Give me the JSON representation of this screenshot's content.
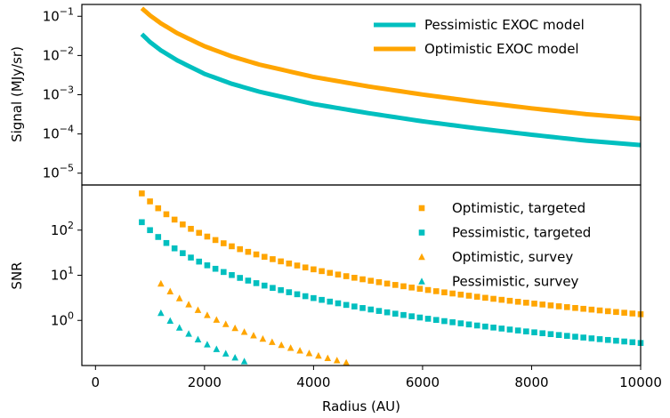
{
  "chart_data": [
    {
      "type": "line",
      "panel": "top",
      "ylabel": "Signal (MJy/sr)",
      "yscale": "log",
      "ylim": [
        5e-06,
        0.2
      ],
      "y_ticks": [
        {
          "value": 0.1,
          "base": "10",
          "exp": "−1"
        },
        {
          "value": 0.01,
          "base": "10",
          "exp": "−2"
        },
        {
          "value": 0.001,
          "base": "10",
          "exp": "−3"
        },
        {
          "value": 0.0001,
          "base": "10",
          "exp": "−4"
        },
        {
          "value": 1e-05,
          "base": "10",
          "exp": "−5"
        }
      ],
      "xlim": [
        -250,
        10000
      ],
      "legend_position": "upper-right",
      "series": [
        {
          "name": "Pessimistic EXOC model",
          "color": "#00bfbf",
          "x": [
            850,
            1000,
            1200,
            1500,
            2000,
            2500,
            3000,
            4000,
            5000,
            6000,
            7000,
            8000,
            9000,
            10000
          ],
          "y": [
            0.035,
            0.022,
            0.0135,
            0.0075,
            0.0034,
            0.0019,
            0.0012,
            0.00058,
            0.00034,
            0.00021,
            0.000139,
            9.55e-05,
            6.75e-05,
            5.2e-05
          ]
        },
        {
          "name": "Optimistic EXOC model",
          "color": "#ffa500",
          "x": [
            850,
            1000,
            1200,
            1500,
            2000,
            2500,
            3000,
            4000,
            5000,
            6000,
            7000,
            8000,
            9000,
            10000
          ],
          "y": [
            0.16,
            0.105,
            0.066,
            0.037,
            0.0172,
            0.0095,
            0.0059,
            0.00284,
            0.00163,
            0.00101,
            0.00066,
            0.00045,
            0.00032,
            0.000245
          ]
        }
      ]
    },
    {
      "type": "scatter",
      "panel": "bottom",
      "ylabel": "SNR",
      "xlabel": "Radius (AU)",
      "yscale": "log",
      "ylim": [
        0.1,
        1000
      ],
      "y_ticks": [
        {
          "value": 100,
          "base": "10",
          "exp": "2"
        },
        {
          "value": 10,
          "base": "10",
          "exp": "1"
        },
        {
          "value": 1,
          "base": "10",
          "exp": "0"
        }
      ],
      "xlim": [
        -250,
        10000
      ],
      "x_ticks": [
        "0",
        "2000",
        "4000",
        "6000",
        "8000",
        "10000"
      ],
      "legend_position": "upper-right",
      "series": [
        {
          "name": "Optimistic, targeted",
          "marker": "square",
          "color": "#ffa500",
          "x_start": 850,
          "x_step": 150,
          "x_end": 10000,
          "amplitude": 650,
          "power_law_index": -2.5
        },
        {
          "name": "Pessimistic, targeted",
          "marker": "square",
          "color": "#00bfbf",
          "x_start": 850,
          "x_step": 150,
          "x_end": 10000,
          "amplitude": 150,
          "power_law_index": -2.5
        },
        {
          "name": "Optimistic, survey",
          "marker": "triangle",
          "color": "#ffa500",
          "x_start": 1200,
          "x_step": 170,
          "x_end": 6300,
          "amplitude": 6.5,
          "power_law_index": -3.0
        },
        {
          "name": "Pessimistic, survey",
          "marker": "triangle",
          "color": "#00bfbf",
          "x_start": 1200,
          "x_step": 170,
          "x_end": 3300,
          "amplitude": 1.45,
          "power_law_index": -3.0
        }
      ]
    }
  ]
}
